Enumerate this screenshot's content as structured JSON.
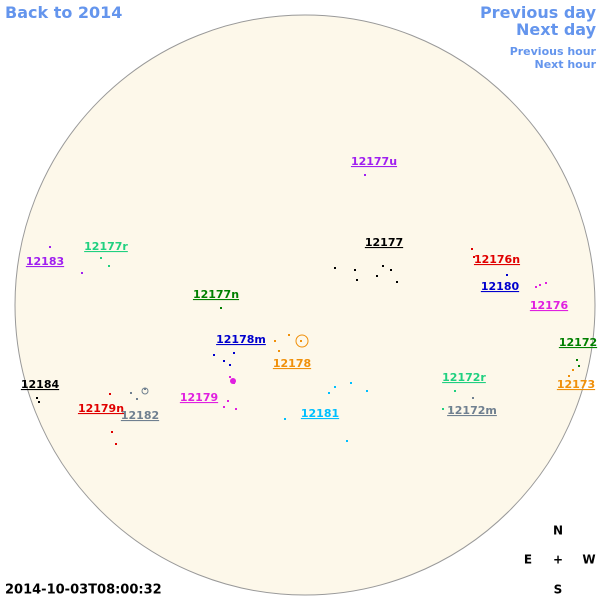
{
  "navigation": {
    "back": "Back to 2014",
    "previous_day": "Previous day",
    "next_day": "Next day",
    "previous_hour": "Previous hour",
    "next_hour": "Next hour"
  },
  "timestamp": "2014-10-03T08:00:32",
  "compass": {
    "north": "N",
    "east": "E",
    "center": "+",
    "west": "W",
    "south": "S"
  },
  "regions": [
    {
      "label": "12177u",
      "color": "#a020f0"
    },
    {
      "label": "12177",
      "color": "#000000"
    },
    {
      "label": "12176n",
      "color": "#e00000"
    },
    {
      "label": "12180",
      "color": "#0000cd"
    },
    {
      "label": "12176",
      "color": "#e020e0"
    },
    {
      "label": "12177r",
      "color": "#20d080"
    },
    {
      "label": "12183",
      "color": "#a020f0"
    },
    {
      "label": "12177n",
      "color": "#008000"
    },
    {
      "label": "12178m",
      "color": "#0000cd"
    },
    {
      "label": "12178",
      "color": "#f0900a"
    },
    {
      "label": "12172",
      "color": "#008000"
    },
    {
      "label": "12173",
      "color": "#f0900a"
    },
    {
      "label": "12184",
      "color": "#000000"
    },
    {
      "label": "12179n",
      "color": "#e00000"
    },
    {
      "label": "12182",
      "color": "#708090"
    },
    {
      "label": "12179",
      "color": "#e020e0"
    },
    {
      "label": "12181",
      "color": "#00bfff"
    },
    {
      "label": "12172r",
      "color": "#20d080"
    },
    {
      "label": "12172m",
      "color": "#708090"
    }
  ]
}
